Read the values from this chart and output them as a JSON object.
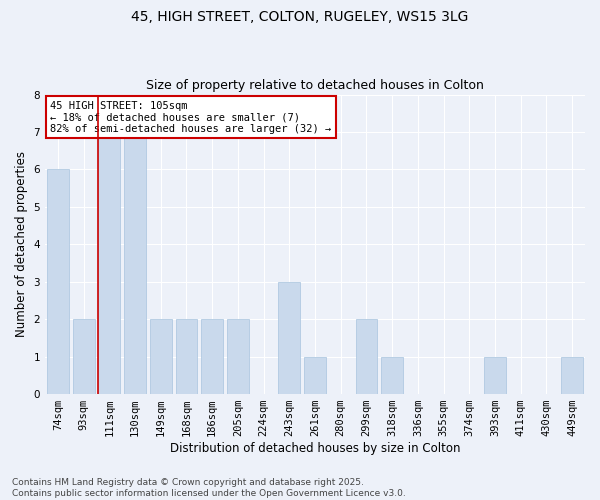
{
  "title": "45, HIGH STREET, COLTON, RUGELEY, WS15 3LG",
  "subtitle": "Size of property relative to detached houses in Colton",
  "xlabel": "Distribution of detached houses by size in Colton",
  "ylabel": "Number of detached properties",
  "categories": [
    "74sqm",
    "93sqm",
    "111sqm",
    "130sqm",
    "149sqm",
    "168sqm",
    "186sqm",
    "205sqm",
    "224sqm",
    "243sqm",
    "261sqm",
    "280sqm",
    "299sqm",
    "318sqm",
    "336sqm",
    "355sqm",
    "374sqm",
    "393sqm",
    "411sqm",
    "430sqm",
    "449sqm"
  ],
  "values": [
    6,
    2,
    7,
    7,
    2,
    2,
    2,
    2,
    0,
    3,
    1,
    0,
    2,
    1,
    0,
    0,
    0,
    1,
    0,
    0,
    1
  ],
  "bar_color": "#c9d9ec",
  "bar_edge_color": "#a8c4de",
  "vline_x_index": 2,
  "vline_color": "#cc0000",
  "annotation_text": "45 HIGH STREET: 105sqm\n← 18% of detached houses are smaller (7)\n82% of semi-detached houses are larger (32) →",
  "annotation_box_color": "#cc0000",
  "ylim": [
    0,
    8
  ],
  "yticks": [
    0,
    1,
    2,
    3,
    4,
    5,
    6,
    7,
    8
  ],
  "footer_text": "Contains HM Land Registry data © Crown copyright and database right 2025.\nContains public sector information licensed under the Open Government Licence v3.0.",
  "bg_color": "#edf1f9",
  "plot_bg_color": "#edf1f9",
  "grid_color": "#ffffff",
  "title_fontsize": 10,
  "subtitle_fontsize": 9,
  "axis_label_fontsize": 8.5,
  "tick_fontsize": 7.5,
  "footer_fontsize": 6.5
}
